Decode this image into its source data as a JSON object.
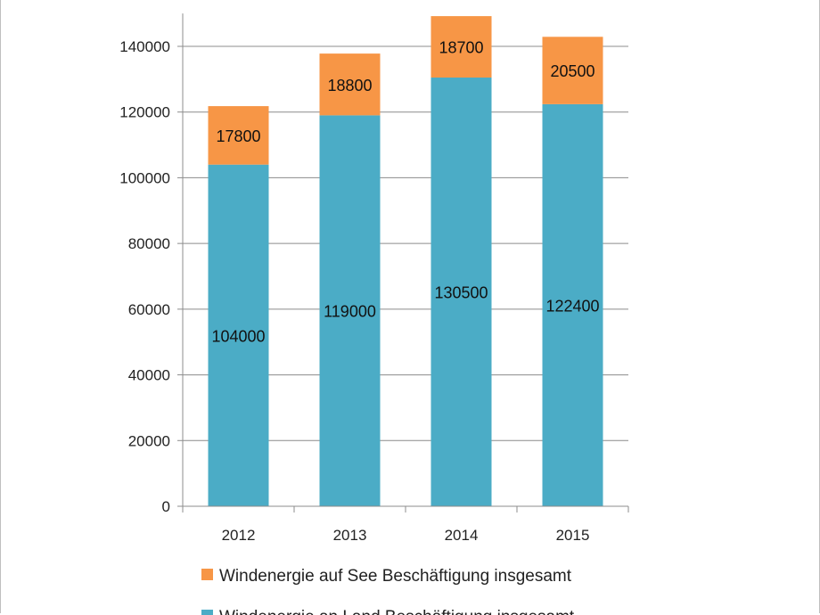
{
  "chart_data": {
    "type": "bar",
    "stacked": true,
    "categories": [
      "2012",
      "2013",
      "2014",
      "2015"
    ],
    "series": [
      {
        "name": "Windenergie an Land Beschäftigung insgesamt",
        "values": [
          104000,
          119000,
          130500,
          122400
        ],
        "color": "#4bacc6"
      },
      {
        "name": "Windenergie auf See Beschäftigung insgesamt",
        "values": [
          17800,
          18800,
          18700,
          20500
        ],
        "color": "#f79646"
      }
    ],
    "ylim": [
      0,
      150000
    ],
    "yticks": [
      0,
      20000,
      40000,
      60000,
      80000,
      100000,
      120000,
      140000
    ],
    "grid": true,
    "legend_position": "bottom"
  }
}
